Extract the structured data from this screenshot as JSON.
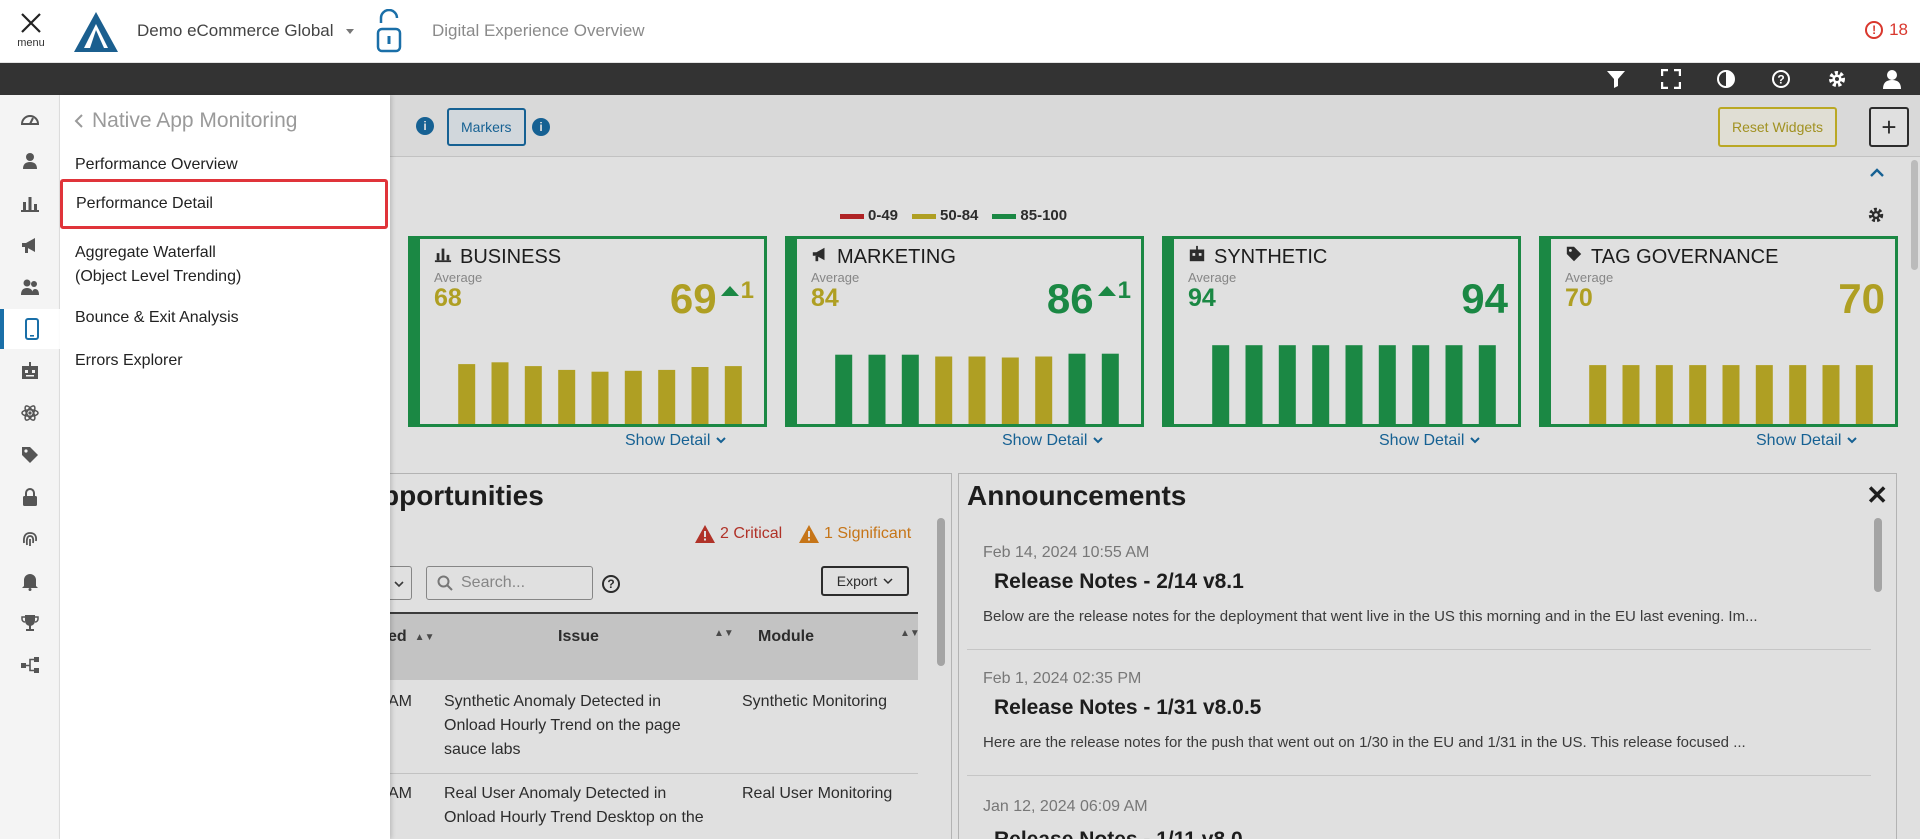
{
  "topbar": {
    "menu_label": "menu",
    "org_name": "Demo eCommerce Global",
    "page_title": "Digital Experience Overview",
    "alert_count": "18"
  },
  "flyout": {
    "back_label": "Native App Monitoring",
    "items": [
      {
        "label": "Performance Overview"
      },
      {
        "label": "Performance Detail"
      },
      {
        "label": "Aggregate Waterfall"
      },
      {
        "label": "(Object Level Trending)"
      },
      {
        "label": "Bounce & Exit Analysis"
      },
      {
        "label": "Errors Explorer"
      }
    ]
  },
  "filterbar": {
    "markers_label": "Markers",
    "reset_label": "Reset Widgets",
    "add_label": "+"
  },
  "legend": {
    "items": [
      {
        "label": "0-49",
        "color": "#c8282b"
      },
      {
        "label": "50-84",
        "color": "#c8b628"
      },
      {
        "label": "85-100",
        "color": "#1f9b4e"
      }
    ]
  },
  "colors": {
    "green": "#1f9b4e",
    "yellow": "#c8b628",
    "red": "#c8282b",
    "accent": "#1a6fa8"
  },
  "cards": [
    {
      "title": "BUSINESS",
      "icon": "bar-chart-icon",
      "avg_label": "Average",
      "average": "68",
      "score": "69",
      "delta": "1",
      "score_color": "#c8b628",
      "bars": [
        0.63,
        0.65,
        0.61,
        0.57,
        0.55,
        0.56,
        0.57,
        0.6,
        0.61
      ],
      "bar_colors": [
        "#c8b628",
        "#c8b628",
        "#c8b628",
        "#c8b628",
        "#c8b628",
        "#c8b628",
        "#c8b628",
        "#c8b628",
        "#c8b628"
      ]
    },
    {
      "title": "MARKETING",
      "icon": "megaphone-icon",
      "avg_label": "Average",
      "average": "84",
      "score": "86",
      "delta": "1",
      "score_color": "#1f9b4e",
      "bars": [
        0.73,
        0.73,
        0.73,
        0.71,
        0.71,
        0.7,
        0.71,
        0.74,
        0.74
      ],
      "bar_colors": [
        "#1f9b4e",
        "#1f9b4e",
        "#1f9b4e",
        "#c8b628",
        "#c8b628",
        "#c8b628",
        "#c8b628",
        "#1f9b4e",
        "#1f9b4e"
      ]
    },
    {
      "title": "SYNTHETIC",
      "icon": "robot-icon",
      "avg_label": "Average",
      "average": "94",
      "score": "94",
      "delta": "",
      "score_color": "#1f9b4e",
      "bars": [
        0.83,
        0.83,
        0.83,
        0.83,
        0.83,
        0.83,
        0.83,
        0.83,
        0.83
      ],
      "bar_colors": [
        "#1f9b4e",
        "#1f9b4e",
        "#1f9b4e",
        "#1f9b4e",
        "#1f9b4e",
        "#1f9b4e",
        "#1f9b4e",
        "#1f9b4e",
        "#1f9b4e"
      ]
    },
    {
      "title": "TAG GOVERNANCE",
      "icon": "tag-icon",
      "avg_label": "Average",
      "average": "70",
      "score": "70",
      "delta": "",
      "score_color": "#c8b628",
      "bars": [
        0.62,
        0.62,
        0.62,
        0.62,
        0.62,
        0.62,
        0.62,
        0.62,
        0.62
      ],
      "bar_colors": [
        "#c8b628",
        "#c8b628",
        "#c8b628",
        "#c8b628",
        "#c8b628",
        "#c8b628",
        "#c8b628",
        "#c8b628",
        "#c8b628"
      ]
    }
  ],
  "show_detail_label": "Show Detail",
  "opportunities": {
    "title": "pportunities",
    "critical": "2 Critical",
    "significant": "1 Significant",
    "search_placeholder": "Search...",
    "export_label": "Export",
    "columns": [
      "ed",
      "Issue",
      "Module"
    ],
    "rows": [
      {
        "time": "AM",
        "issue_lines": [
          "Synthetic Anomaly Detected in",
          "Onload Hourly Trend on the page",
          "sauce labs"
        ],
        "module": "Synthetic Monitoring"
      },
      {
        "time": "AM",
        "issue_lines": [
          "Real User Anomaly Detected in",
          "Onload Hourly Trend Desktop on the"
        ],
        "module": "Real User Monitoring"
      }
    ]
  },
  "announcements": {
    "title": "Announcements",
    "close_label": "✕",
    "items": [
      {
        "date": "Feb 14, 2024 10:55 AM",
        "headline": "Release Notes - 2/14 v8.1",
        "body": "Below are the release notes for the deployment that went live in the US this morning and in the EU last evening. Im..."
      },
      {
        "date": "Feb 1, 2024 02:35 PM",
        "headline": "Release Notes - 1/31 v8.0.5",
        "body": "Here are the release notes for the push that went out on 1/30 in the EU and 1/31 in the US.  This release focused ..."
      },
      {
        "date": "Jan 12, 2024 06:09 AM",
        "headline": "Release Notes - 1/11 v8.0",
        "body": ""
      }
    ]
  }
}
